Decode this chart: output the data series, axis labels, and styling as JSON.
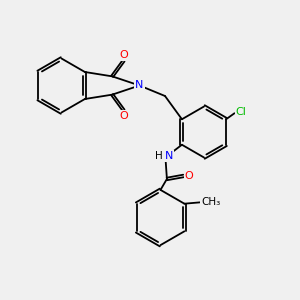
{
  "background_color": "#f0f0f0",
  "bond_color": "#000000",
  "atom_colors": {
    "N": "#0000ff",
    "O": "#ff0000",
    "Cl": "#00bb00",
    "H": "#000000",
    "C": "#000000"
  },
  "figsize": [
    3.0,
    3.0
  ],
  "dpi": 100
}
